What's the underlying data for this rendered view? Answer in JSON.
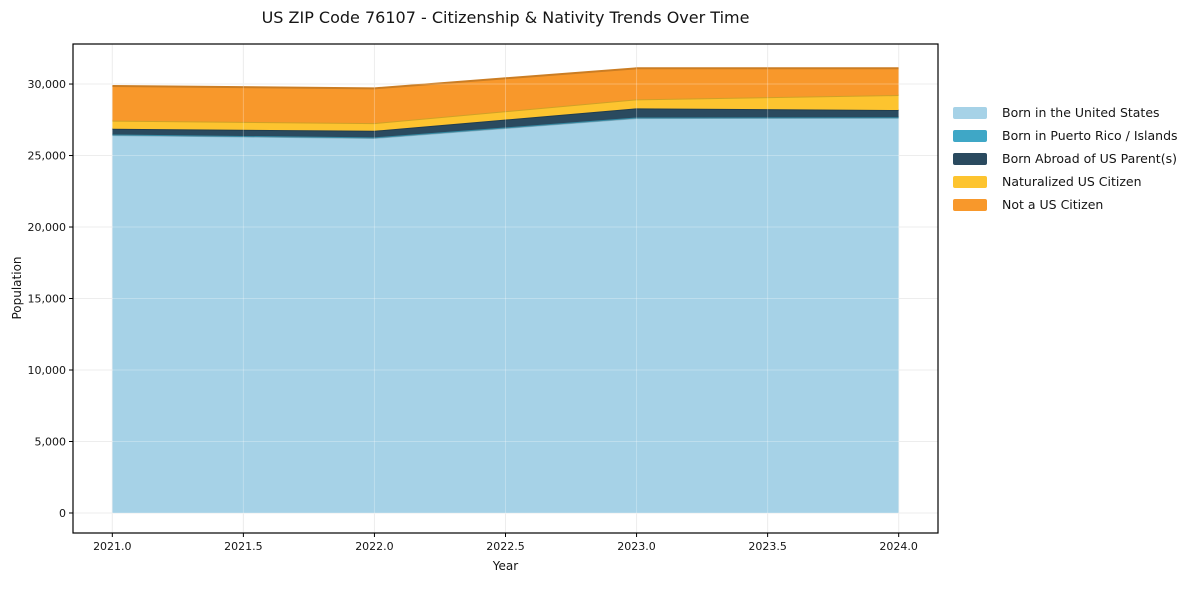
{
  "chart_data": {
    "type": "area",
    "stacked": true,
    "title": "US ZIP Code 76107 - Citizenship & Nativity Trends Over Time",
    "xlabel": "Year",
    "ylabel": "Population",
    "x": [
      2021,
      2022,
      2023,
      2024
    ],
    "series": [
      {
        "name": "Born in the United States",
        "color": "#A6D2E7",
        "values": [
          26430,
          26230,
          27620,
          27640
        ]
      },
      {
        "name": "Born in Puerto Rico / Islands",
        "color": "#3FA7C6",
        "values": [
          40,
          40,
          40,
          40
        ]
      },
      {
        "name": "Born Abroad of US Parent(s)",
        "color": "#2A4A5F",
        "values": [
          400,
          460,
          640,
          500
        ]
      },
      {
        "name": "Naturalized US Citizen",
        "color": "#FDC42F",
        "values": [
          570,
          540,
          630,
          1050
        ]
      },
      {
        "name": "Not a US Citizen",
        "color": "#F8982B",
        "values": [
          2420,
          2430,
          2170,
          1870
        ]
      }
    ],
    "xlim": [
      2020.85,
      2024.15
    ],
    "ylim": [
      -1400,
      32800
    ],
    "x_ticks": [
      {
        "v": 2021.0,
        "label": "2021.0"
      },
      {
        "v": 2021.5,
        "label": "2021.5"
      },
      {
        "v": 2022.0,
        "label": "2022.0"
      },
      {
        "v": 2022.5,
        "label": "2022.5"
      },
      {
        "v": 2023.0,
        "label": "2023.0"
      },
      {
        "v": 2023.5,
        "label": "2023.5"
      },
      {
        "v": 2024.0,
        "label": "2024.0"
      }
    ],
    "y_ticks": [
      {
        "v": 0,
        "label": "0"
      },
      {
        "v": 5000,
        "label": "5,000"
      },
      {
        "v": 10000,
        "label": "10,000"
      },
      {
        "v": 15000,
        "label": "15,000"
      },
      {
        "v": 20000,
        "label": "20,000"
      },
      {
        "v": 25000,
        "label": "25,000"
      },
      {
        "v": 30000,
        "label": "30,000"
      }
    ],
    "grid": true,
    "legend_position": "right-outside"
  }
}
